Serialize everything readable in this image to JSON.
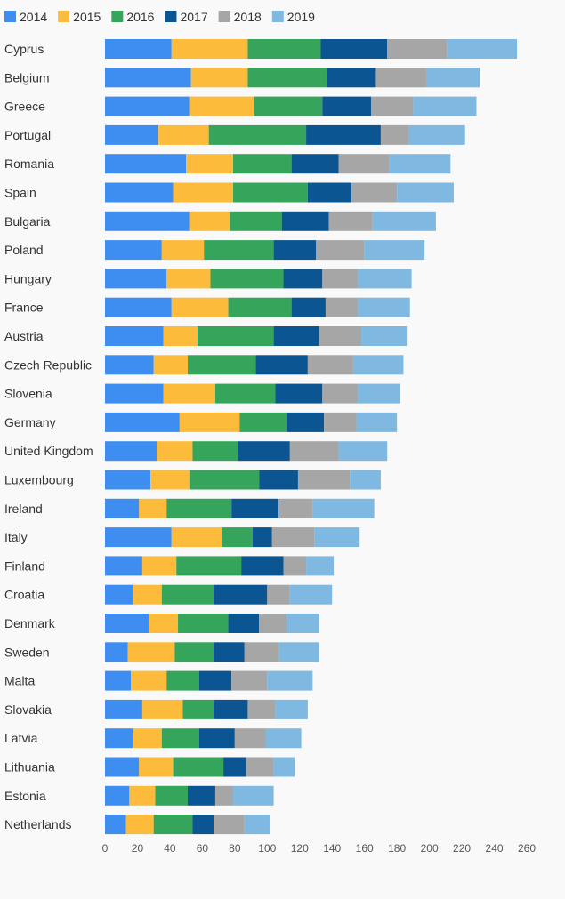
{
  "chart_data": {
    "type": "bar",
    "orientation": "horizontal",
    "stacked": true,
    "categories": [
      "Cyprus",
      "Belgium",
      "Greece",
      "Portugal",
      "Romania",
      "Spain",
      "Bulgaria",
      "Poland",
      "Hungary",
      "France",
      "Austria",
      "Czech Republic",
      "Slovenia",
      "Germany",
      "United Kingdom",
      "Luxembourg",
      "Ireland",
      "Italy",
      "Finland",
      "Croatia",
      "Denmark",
      "Sweden",
      "Malta",
      "Slovakia",
      "Latvia",
      "Lithuania",
      "Estonia",
      "Netherlands"
    ],
    "series": [
      {
        "name": "2014",
        "color": "#3d8ef0",
        "values": [
          41,
          53,
          52,
          33,
          50,
          42,
          52,
          35,
          38,
          41,
          36,
          30,
          36,
          46,
          32,
          28,
          21,
          41,
          23,
          17,
          27,
          14,
          16,
          23,
          17,
          21,
          15,
          13
        ]
      },
      {
        "name": "2015",
        "color": "#fdbb3b",
        "values": [
          47,
          35,
          40,
          31,
          29,
          37,
          25,
          26,
          27,
          35,
          21,
          21,
          32,
          37,
          22,
          24,
          17,
          31,
          21,
          18,
          18,
          29,
          22,
          25,
          18,
          21,
          16,
          17
        ]
      },
      {
        "name": "2016",
        "color": "#34a55a",
        "values": [
          45,
          49,
          42,
          60,
          36,
          46,
          32,
          43,
          45,
          39,
          47,
          42,
          37,
          29,
          28,
          43,
          40,
          19,
          40,
          32,
          31,
          24,
          20,
          19,
          23,
          31,
          20,
          24
        ]
      },
      {
        "name": "2017",
        "color": "#0b5592",
        "values": [
          41,
          30,
          30,
          46,
          29,
          27,
          29,
          26,
          24,
          21,
          28,
          32,
          29,
          23,
          32,
          24,
          29,
          12,
          26,
          33,
          19,
          19,
          20,
          21,
          22,
          14,
          17,
          13
        ]
      },
      {
        "name": "2018",
        "color": "#a6a6a6",
        "values": [
          37,
          31,
          26,
          17,
          31,
          28,
          27,
          30,
          22,
          20,
          26,
          28,
          22,
          20,
          30,
          32,
          21,
          26,
          14,
          14,
          17,
          21,
          22,
          17,
          19,
          17,
          11,
          19
        ]
      },
      {
        "name": "2019",
        "color": "#7fb9e1",
        "values": [
          43,
          33,
          39,
          35,
          38,
          35,
          39,
          37,
          33,
          32,
          28,
          31,
          26,
          25,
          30,
          19,
          38,
          28,
          17,
          26,
          20,
          25,
          28,
          20,
          22,
          13,
          25,
          16
        ]
      }
    ],
    "xlim": [
      0,
      260
    ],
    "xticks": [
      0,
      20,
      40,
      60,
      80,
      100,
      120,
      140,
      160,
      180,
      200,
      220,
      240,
      260
    ],
    "legend": "top-left",
    "grid": false
  }
}
